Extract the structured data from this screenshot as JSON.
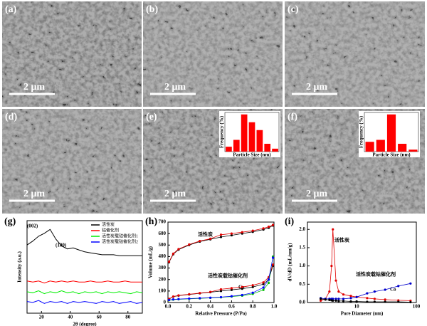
{
  "panels": [
    {
      "label": "(a)",
      "scale": "2 μm"
    },
    {
      "label": "(b)",
      "scale": "2 μm"
    },
    {
      "label": "(c)",
      "scale": "2 μm"
    },
    {
      "label": "(d)",
      "scale": "2 μm"
    },
    {
      "label": "(e)",
      "scale": "2 μm"
    },
    {
      "label": "(f)",
      "scale": "2 μm"
    }
  ],
  "chart_data": [
    {
      "type": "line",
      "label": "(g)",
      "xlabel": "2θ (degree)",
      "ylabel": "Intensity (a.u.)",
      "x": [
        10,
        14,
        18,
        22,
        26,
        30,
        34,
        38,
        42,
        46,
        50,
        54,
        58,
        62,
        66,
        70,
        74,
        78,
        82,
        86,
        90
      ],
      "xlim": [
        10,
        90
      ],
      "xticks": [
        20,
        40,
        60,
        80
      ],
      "ylim": [
        1,
        10.5
      ],
      "legend": "upper right",
      "annotations": [
        "(002)",
        "(100)"
      ],
      "series": [
        {
          "name": "活性炭",
          "color": "#000000",
          "values": [
            8.0,
            8.4,
            8.9,
            9.2,
            9.6,
            8.6,
            7.9,
            7.6,
            7.7,
            7.5,
            7.3,
            7.2,
            7.1,
            7.0,
            7.0,
            7.0,
            6.9,
            6.9,
            6.9,
            6.9,
            6.9
          ]
        },
        {
          "name": "钴催化剂",
          "color": "#ff0000",
          "values": [
            4.3,
            4.2,
            4.3,
            4.1,
            4.3,
            4.2,
            4.3,
            4.2,
            4.3,
            4.2,
            4.2,
            4.3,
            4.2,
            4.2,
            4.3,
            4.2,
            4.2,
            4.3,
            4.2,
            4.2,
            4.2
          ]
        },
        {
          "name": "活性炭载钴催化剂1",
          "color": "#00ee00",
          "values": [
            3.2,
            3.1,
            3.3,
            3.0,
            3.2,
            3.1,
            3.3,
            3.1,
            3.2,
            3.0,
            3.2,
            3.1,
            3.2,
            3.0,
            3.2,
            3.1,
            3.2,
            3.1,
            3.0,
            3.2,
            3.1
          ]
        },
        {
          "name": "活性炭载钴催化剂2",
          "color": "#0000ff",
          "values": [
            2.2,
            2.1,
            2.3,
            2.0,
            2.2,
            2.1,
            2.2,
            2.0,
            2.2,
            2.1,
            2.2,
            2.1,
            2.0,
            2.2,
            2.1,
            2.2,
            2.0,
            2.1,
            2.2,
            2.0,
            2.1
          ]
        }
      ]
    },
    {
      "type": "line",
      "label": "(h)",
      "xlabel": "Relative Pressure (P/Po)",
      "ylabel": "Volume (mL/g)",
      "x": [
        0.01,
        0.05,
        0.1,
        0.2,
        0.3,
        0.4,
        0.5,
        0.6,
        0.7,
        0.8,
        0.9,
        0.95,
        0.99
      ],
      "xlim": [
        0,
        1.0
      ],
      "xticks": [
        {
          "value": 0,
          "label": "0.0"
        },
        0.2,
        0.4,
        0.6,
        0.8,
        {
          "value": 1,
          "label": "1.0"
        }
      ],
      "ylim": [
        0,
        700
      ],
      "yticks": [
        0,
        100,
        200,
        300,
        400,
        500,
        600,
        700
      ],
      "markers": true,
      "annotations": [
        "活性炭",
        "活性炭载钴催化剂",
        "Co"
      ],
      "series": [
        {
          "color": "#000000",
          "values": [
            350,
            420,
            460,
            500,
            530,
            550,
            570,
            585,
            600,
            615,
            635,
            650,
            670
          ]
        },
        {
          "color": "#e00000",
          "values": [
            355,
            425,
            465,
            505,
            535,
            555,
            590,
            600,
            612,
            625,
            645,
            660,
            675
          ]
        },
        {
          "color": "#000000",
          "values": [
            30,
            50,
            60,
            70,
            80,
            90,
            100,
            110,
            120,
            135,
            160,
            200,
            320
          ]
        },
        {
          "color": "#e00000",
          "values": [
            32,
            52,
            62,
            72,
            82,
            92,
            115,
            125,
            135,
            150,
            175,
            220,
            330
          ]
        },
        {
          "color": "#00bb00",
          "values": [
            20,
            25,
            28,
            32,
            36,
            40,
            45,
            52,
            60,
            75,
            110,
            170,
            400
          ]
        },
        {
          "color": "#0000ff",
          "values": [
            22,
            27,
            30,
            34,
            38,
            42,
            47,
            55,
            65,
            85,
            130,
            200,
            390
          ]
        }
      ]
    },
    {
      "type": "line",
      "label": "(i)",
      "xlabel": "Pore Diameter (nm)",
      "ylabel": "dV/dD (mL/nm/g)",
      "xscale": "log",
      "x": [
        2.5,
        3,
        3.5,
        3.8,
        4,
        4.5,
        5,
        6,
        8,
        10,
        15,
        20,
        30,
        50,
        80
      ],
      "xlim": [
        1.5,
        100
      ],
      "xticks": [
        10,
        100
      ],
      "ylim": [
        0,
        2.2
      ],
      "yticks": [
        {
          "value": 0,
          "label": "0.0"
        },
        0.5,
        {
          "value": 1,
          "label": "1.0"
        },
        1.5,
        {
          "value": 2,
          "label": "2.0"
        }
      ],
      "markers": true,
      "annotations": [
        "活性炭",
        "活性炭载钴催化剂",
        "Co"
      ],
      "series": [
        {
          "color": "#e00000",
          "values": [
            0.05,
            0.1,
            0.3,
            1.0,
            2.0,
            0.6,
            0.3,
            0.22,
            0.18,
            0.15,
            0.12,
            0.1,
            0.08,
            0.06,
            0.05
          ]
        },
        {
          "color": "#0000cc",
          "values": [
            0.12,
            0.1,
            0.1,
            0.1,
            0.1,
            0.1,
            0.1,
            0.1,
            0.12,
            0.15,
            0.25,
            0.3,
            0.35,
            0.45,
            0.52
          ]
        },
        {
          "color": "#000000",
          "values": [
            0.1,
            0.08,
            0.07,
            0.06,
            0.05,
            0.05,
            0.04,
            0.04,
            0.03,
            0.03,
            0.02,
            0.02,
            0.02,
            0.02,
            0.01
          ]
        }
      ]
    },
    {
      "type": "bar",
      "xlabel": "Particle Size (nm)",
      "ylabel": "Frequency (%)",
      "categories": [
        null,
        null,
        null,
        null,
        null,
        null,
        null
      ],
      "values": [
        5,
        12,
        38,
        30,
        22,
        8,
        3
      ],
      "color": "#ff0000",
      "ylim": [
        0,
        40
      ]
    },
    {
      "type": "bar",
      "xlabel": "Particle Size (nm)",
      "ylabel": "Frequency (%)",
      "categories": [
        null,
        null,
        null,
        null,
        null
      ],
      "values": [
        10,
        12,
        38,
        8,
        2
      ],
      "color": "#ff0000",
      "ylim": [
        0,
        40
      ]
    }
  ]
}
